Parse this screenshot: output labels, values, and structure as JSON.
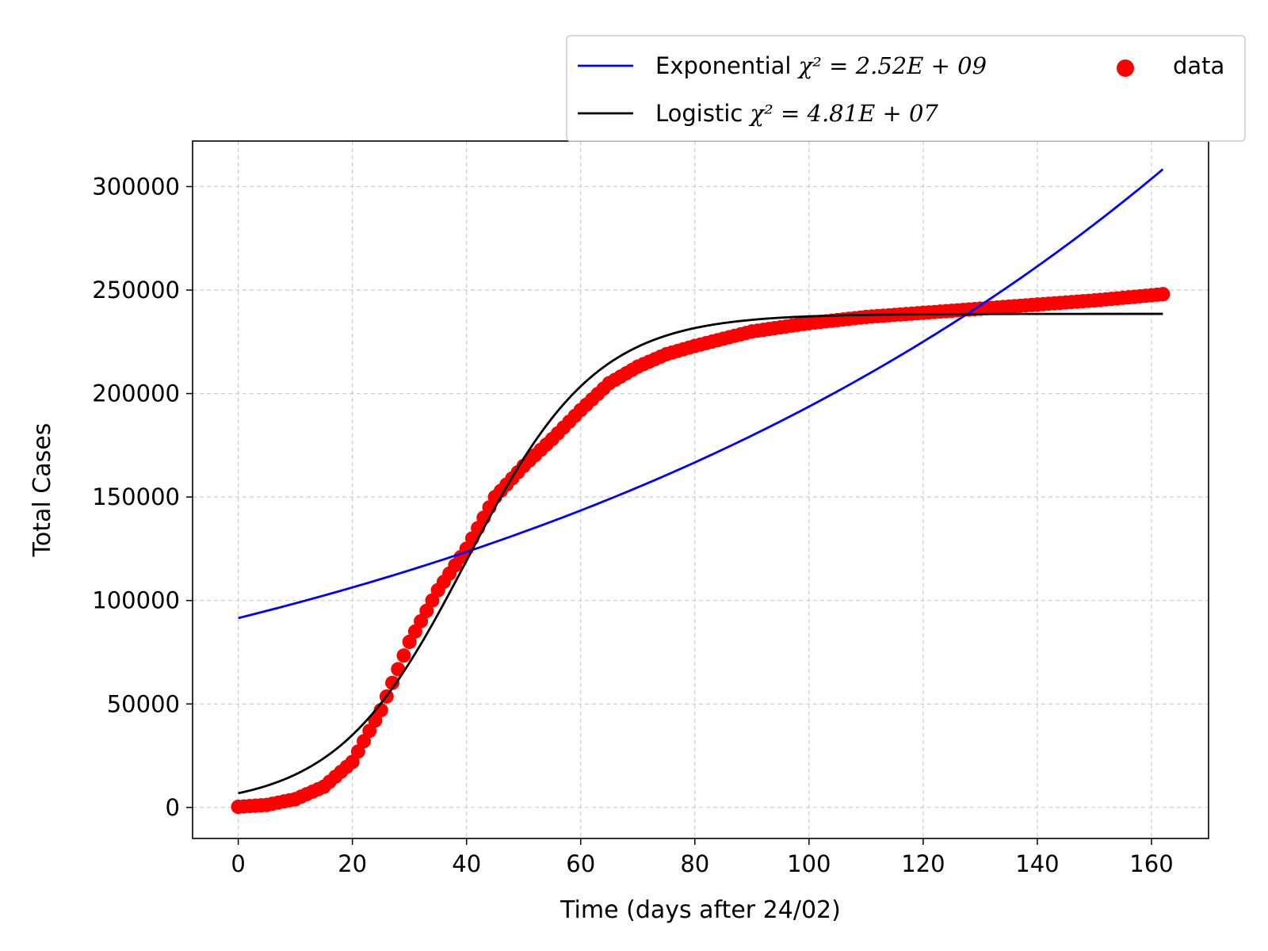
{
  "chart_data": {
    "type": "line",
    "title": "",
    "xlabel": "Time (days after 24/02)",
    "ylabel": "Total Cases",
    "xlim": [
      -8,
      170
    ],
    "ylim": [
      -15000,
      322000
    ],
    "xticks": [
      0,
      20,
      40,
      60,
      80,
      100,
      120,
      140,
      160
    ],
    "xtick_labels": [
      "0",
      "20",
      "40",
      "60",
      "80",
      "100",
      "120",
      "140",
      "160"
    ],
    "yticks": [
      0,
      50000,
      100000,
      150000,
      200000,
      250000,
      300000
    ],
    "ytick_labels": [
      "0",
      "50000",
      "100000",
      "150000",
      "200000",
      "250000",
      "300000"
    ],
    "grid": true,
    "legend_position": "above-top-right",
    "series": [
      {
        "name": "Exponential χ² = 2.52E + 09",
        "kind": "line",
        "color": "#0000ff",
        "model": "exponential",
        "params": {
          "a": 91500,
          "b": 0.0075
        },
        "x": [
          0,
          20,
          40,
          60,
          80,
          100,
          120,
          140,
          162
        ],
        "values": [
          91500,
          106300,
          123500,
          143500,
          166800,
          193800,
          225200,
          261600,
          308500
        ]
      },
      {
        "name": "Logistic χ² = 4.81E + 07",
        "kind": "line",
        "color": "#000000",
        "model": "logistic",
        "params": {
          "K": 238500,
          "r": 0.088,
          "x0": 40
        },
        "x": [
          0,
          10,
          20,
          30,
          40,
          50,
          60,
          80,
          100,
          120,
          140,
          162
        ],
        "values": [
          7300,
          17700,
          35600,
          70000,
          119200,
          168500,
          202800,
          230200,
          236900,
          238200,
          238500,
          238500
        ]
      },
      {
        "name": "data",
        "kind": "scatter",
        "color": "#ff0000",
        "x": [
          0,
          5,
          10,
          15,
          20,
          25,
          30,
          35,
          40,
          45,
          50,
          55,
          60,
          65,
          70,
          75,
          80,
          90,
          100,
          110,
          120,
          130,
          140,
          150,
          162
        ],
        "values": [
          300,
          1200,
          4000,
          10000,
          22000,
          47000,
          80000,
          105000,
          125000,
          150000,
          165000,
          178000,
          192000,
          205000,
          213000,
          219000,
          223000,
          230000,
          234000,
          237000,
          239000,
          241000,
          243000,
          245000,
          248000
        ]
      }
    ],
    "legend": {
      "entries": [
        {
          "label_main": "Exponential",
          "label_math": "χ² = 2.52E + 09",
          "color": "#0000ff",
          "kind": "line"
        },
        {
          "label_main": "Logistic",
          "label_math": "χ² = 4.81E + 07",
          "color": "#000000",
          "kind": "line"
        },
        {
          "label_main": "data",
          "label_math": "",
          "color": "#ff0000",
          "kind": "scatter"
        }
      ]
    }
  }
}
